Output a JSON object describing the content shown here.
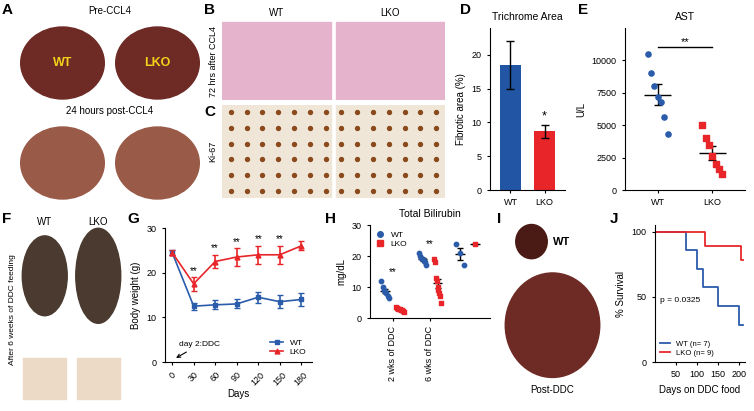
{
  "images": [
    {
      "label": "A",
      "columns": [
        "WT",
        "LKO"
      ],
      "rows": [
        "Pre-CCL4",
        "24 hours post-CCL4"
      ]
    },
    {
      "label": "B",
      "columns": [
        "WT",
        "LKO"
      ],
      "rows": [
        "72 hrs after CCL4"
      ]
    },
    {
      "label": "C",
      "rows": [
        "Ki-67"
      ]
    },
    {
      "label": "F",
      "columns": [
        "WT",
        "LKO"
      ],
      "rows": [
        "After 6 weeks of DDC feeding"
      ]
    },
    {
      "label": "I",
      "rows": [
        "WT",
        "Post-DDC"
      ]
    }
  ],
  "chart_data": [
    {
      "label": "D",
      "type": "bar",
      "title": "Trichrome Area",
      "y_label": "Fibrotic area (%)",
      "categories": [
        "WT",
        "LKO"
      ],
      "values": [
        18.5,
        8.7
      ],
      "errors": [
        3.5,
        1.0
      ],
      "colors": [
        "#2255a4",
        "#e8262a"
      ],
      "ylim": [
        0,
        24
      ],
      "yticks": [
        0,
        5,
        10,
        15,
        20
      ],
      "significance": "*"
    },
    {
      "label": "E",
      "type": "scatter",
      "title": "AST",
      "y_label": "U/L",
      "categories": [
        "WT",
        "LKO"
      ],
      "values": [
        [
          10500,
          9000,
          8000,
          7200,
          6800,
          5600,
          4300
        ],
        [
          5000,
          4000,
          3500,
          2600,
          2000,
          1600,
          1200
        ]
      ],
      "mean": [
        7343,
        2843
      ],
      "sem": [
        800,
        520
      ],
      "colors": [
        "#2a5caa",
        "#e8262a"
      ],
      "markers": [
        "circle",
        "square"
      ],
      "ylim": [
        0,
        12500
      ],
      "yticks": [
        0,
        2500,
        5000,
        7500,
        10000
      ],
      "significance": "**"
    },
    {
      "label": "G",
      "type": "line",
      "x_label": "Days",
      "y_label": "Body weight (g)",
      "x": [
        0,
        30,
        60,
        90,
        120,
        150,
        180
      ],
      "series": [
        {
          "name": "WT",
          "color": "#2a5caa",
          "marker": "square",
          "values": [
            24.5,
            12.5,
            12.8,
            13,
            14.5,
            13.5,
            14
          ],
          "errors": [
            0.5,
            0.8,
            1,
            1,
            1.2,
            1.5,
            1.5
          ]
        },
        {
          "name": "LKO",
          "color": "#e8262a",
          "marker": "triangle",
          "values": [
            24.5,
            17.5,
            22.5,
            23.5,
            24,
            24,
            26
          ],
          "errors": [
            0.5,
            1.5,
            1.5,
            2,
            2,
            2,
            1
          ]
        }
      ],
      "xlim": [
        -10,
        195
      ],
      "xticks": [
        0,
        30,
        60,
        90,
        120,
        150,
        180
      ],
      "ylim": [
        0,
        30
      ],
      "yticks": [
        0,
        10,
        20,
        30
      ],
      "legend": "lower right",
      "annotations": [
        {
          "x": 2,
          "text": "day 2:DDC"
        },
        {
          "x": 30,
          "text": "**"
        },
        {
          "x": 60,
          "text": "**"
        },
        {
          "x": 90,
          "text": "**"
        },
        {
          "x": 120,
          "text": "**"
        },
        {
          "x": 150,
          "text": "**"
        }
      ]
    },
    {
      "label": "H",
      "type": "scatter",
      "title": "Total Bilirubin",
      "y_label": "mg/dL",
      "categories": [
        "2 wks of DDC",
        "6 wks of DDC",
        null
      ],
      "series": [
        {
          "name": "WT",
          "color": "#2a5caa",
          "marker": "circle",
          "values": [
            [
              12,
              10,
              9,
              8.5,
              8,
              7,
              6.5
            ],
            [
              21,
              20,
              19.5,
              19,
              18.5,
              18,
              17
            ],
            [
              24,
              21,
              17
            ]
          ],
          "mean": [
            8.7,
            19,
            20.7
          ],
          "sem": [
            0.7,
            0.5,
            2
          ]
        },
        {
          "name": "LKO",
          "color": "#e8262a",
          "marker": "square",
          "values": [
            [
              3.5,
              3.2,
              3,
              3,
              2.8,
              2.5,
              2.5,
              2.2,
              2
            ],
            [
              19,
              18,
              13,
              12,
              10,
              9,
              8,
              7,
              5
            ],
            [
              24
            ]
          ],
          "mean": [
            2.7,
            11.2,
            24
          ],
          "sem": [
            0.2,
            1.5,
            0
          ]
        }
      ],
      "ylim": [
        0,
        30
      ],
      "yticks": [
        0,
        10,
        20,
        30
      ],
      "legend": "upper left",
      "annotations": [
        {
          "category": 0,
          "text": "**"
        },
        {
          "category": 1,
          "text": "**"
        }
      ]
    },
    {
      "label": "J",
      "type": "line",
      "line_style": "steps",
      "x_label": "Days on DDC food",
      "y_label": "% Survival",
      "series": [
        {
          "name": "WT (n= 7)",
          "color": "#2a5caa",
          "x": [
            0,
            75,
            100,
            115,
            150,
            200,
            210
          ],
          "values": [
            100,
            85.7,
            71.4,
            57.1,
            42.9,
            28.6,
            28.6
          ]
        },
        {
          "name": "LKO (n= 9)",
          "color": "#e8262a",
          "x": [
            0,
            120,
            205,
            210
          ],
          "values": [
            100,
            88.9,
            77.8,
            77.8
          ]
        }
      ],
      "xlim": [
        0,
        215
      ],
      "xticks": [
        50,
        100,
        150,
        200
      ],
      "ylim": [
        0,
        105
      ],
      "yticks": [
        0,
        50,
        100
      ],
      "legend": "lower left",
      "annotations": [
        {
          "text": "p = 0.0325"
        }
      ]
    }
  ]
}
